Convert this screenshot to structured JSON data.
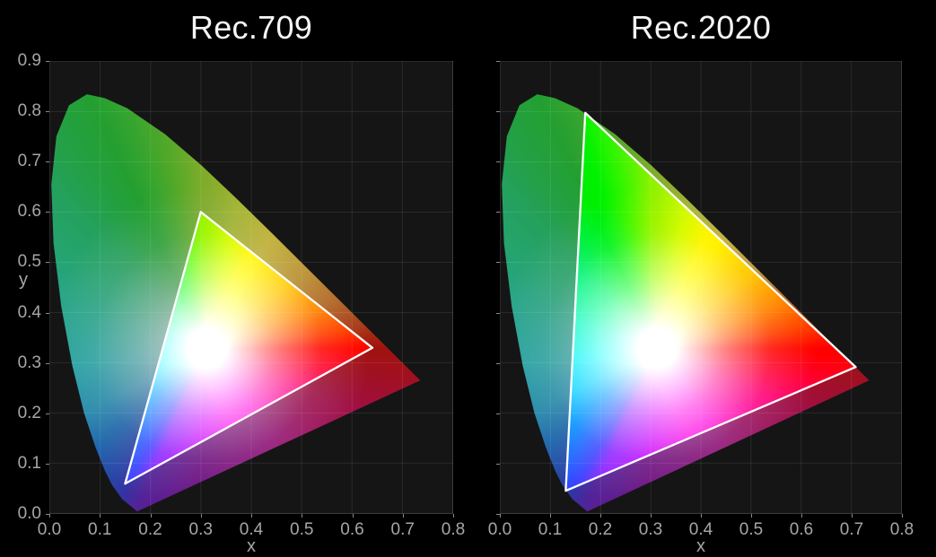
{
  "figure": {
    "kind": "CIE 1931 xy chromaticity diagrams comparing color gamuts"
  },
  "colors": {
    "background": "#000000",
    "plot_background": "#151515",
    "grid_line": "rgba(255,255,255,0.085)",
    "tick_text": "#a6a6a6",
    "title_text": "#f5f5f5",
    "gamut_outline": "#ffffff"
  },
  "chart_data": {
    "type": "area",
    "subtype": "chromaticity-diagram",
    "legend": "none",
    "grid": "on",
    "charts": [
      {
        "title": "Rec.709",
        "xlabel": "x",
        "ylabel": "y",
        "xlim": [
          0.0,
          0.8
        ],
        "ylim": [
          0.0,
          0.9
        ],
        "xticks": [
          "0.0",
          "0.1",
          "0.2",
          "0.3",
          "0.4",
          "0.5",
          "0.6",
          "0.7",
          "0.8"
        ],
        "yticks": [
          "0.0",
          "0.1",
          "0.2",
          "0.3",
          "0.4",
          "0.5",
          "0.6",
          "0.7",
          "0.8",
          "0.9"
        ],
        "gamut": {
          "name": "Rec.709",
          "red_xy": [
            0.64,
            0.33
          ],
          "green_xy": [
            0.3,
            0.6
          ],
          "blue_xy": [
            0.15,
            0.06
          ],
          "white_xy": [
            0.3127,
            0.329
          ]
        }
      },
      {
        "title": "Rec.2020",
        "xlabel": "x",
        "ylabel": "",
        "xlim": [
          0.0,
          0.8
        ],
        "ylim": [
          0.0,
          0.9
        ],
        "xticks": [
          "0.0",
          "0.1",
          "0.2",
          "0.3",
          "0.4",
          "0.5",
          "0.6",
          "0.7",
          "0.8"
        ],
        "yticks": [],
        "gamut": {
          "name": "Rec.2020",
          "red_xy": [
            0.708,
            0.292
          ],
          "green_xy": [
            0.17,
            0.797
          ],
          "blue_xy": [
            0.131,
            0.046
          ],
          "white_xy": [
            0.3127,
            0.329
          ]
        }
      }
    ],
    "spectral_locus_xy": [
      [
        0.1741,
        0.005
      ],
      [
        0.144,
        0.0297
      ],
      [
        0.1241,
        0.0578
      ],
      [
        0.1096,
        0.0868
      ],
      [
        0.0913,
        0.1327
      ],
      [
        0.0687,
        0.2007
      ],
      [
        0.0454,
        0.295
      ],
      [
        0.0235,
        0.4127
      ],
      [
        0.0082,
        0.5384
      ],
      [
        0.0039,
        0.6548
      ],
      [
        0.0139,
        0.7502
      ],
      [
        0.0389,
        0.812
      ],
      [
        0.0743,
        0.8338
      ],
      [
        0.1096,
        0.8263
      ],
      [
        0.1547,
        0.8059
      ],
      [
        0.2296,
        0.7543
      ],
      [
        0.3016,
        0.6923
      ],
      [
        0.3731,
        0.6245
      ],
      [
        0.4441,
        0.5547
      ],
      [
        0.5125,
        0.4866
      ],
      [
        0.5752,
        0.4242
      ],
      [
        0.627,
        0.3725
      ],
      [
        0.6658,
        0.334
      ],
      [
        0.6915,
        0.3083
      ],
      [
        0.7079,
        0.292
      ],
      [
        0.726,
        0.274
      ],
      [
        0.7347,
        0.2653
      ]
    ]
  }
}
